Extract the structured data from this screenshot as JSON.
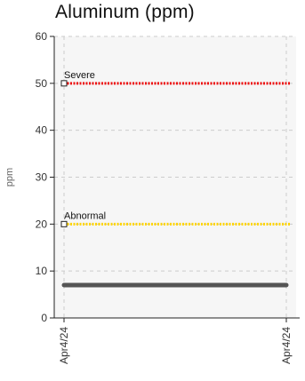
{
  "chart_data": {
    "type": "line",
    "title": "Aluminum (ppm)",
    "xlabel": "",
    "ylabel": "ppm",
    "ylim": [
      0,
      60
    ],
    "yticks": [
      0,
      10,
      20,
      30,
      40,
      50,
      60
    ],
    "x_tick_labels": [
      "Apr4/24",
      "Apr4/24"
    ],
    "grid": true,
    "series": [
      {
        "values": [
          7,
          7
        ],
        "color": "#555555"
      }
    ],
    "thresholds": [
      {
        "label": "Severe",
        "value": 50,
        "color": "#ee1111"
      },
      {
        "label": "Abnormal",
        "value": 20,
        "color": "#ffd400"
      }
    ]
  }
}
